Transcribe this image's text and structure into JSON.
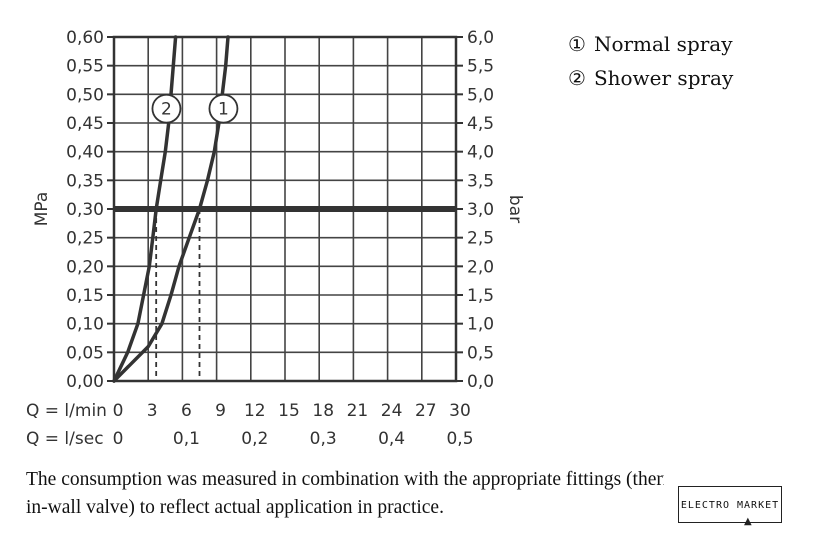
{
  "chart_data": {
    "type": "line",
    "x": {
      "label_lmin": "Q = l/min",
      "label_lsec": "Q = l/sec",
      "range": [
        0,
        30
      ],
      "ticks": [
        0,
        3,
        6,
        9,
        12,
        15,
        18,
        21,
        24,
        27,
        30
      ],
      "tick_labels_lmin": [
        "0",
        "3",
        "6",
        "9",
        "12",
        "15",
        "18",
        "21",
        "24",
        "27",
        "30"
      ],
      "ticks_lsec": [
        0,
        6,
        12,
        18,
        24,
        30
      ],
      "tick_labels_lsec": [
        "0",
        "0,1",
        "0,2",
        "0,3",
        "0,4",
        "0,5"
      ]
    },
    "y_left": {
      "label": "MPa",
      "range": [
        0,
        0.6
      ],
      "ticks": [
        0,
        0.05,
        0.1,
        0.15,
        0.2,
        0.25,
        0.3,
        0.35,
        0.4,
        0.45,
        0.5,
        0.55,
        0.6
      ],
      "tick_labels": [
        "0,00",
        "0,05",
        "0,10",
        "0,15",
        "0,20",
        "0,25",
        "0,30",
        "0,35",
        "0,40",
        "0,45",
        "0,50",
        "0,55",
        "0,60"
      ]
    },
    "y_right": {
      "label": "bar",
      "range": [
        0,
        6
      ],
      "tick_labels": [
        "0,0",
        "0,5",
        "1,0",
        "1,5",
        "2,0",
        "2,5",
        "3,0",
        "3,5",
        "4,0",
        "4,5",
        "5,0",
        "5,5",
        "6,0"
      ]
    },
    "grid": true,
    "reference_line": {
      "y": 0.3
    },
    "series": [
      {
        "marker": "1",
        "points": [
          [
            0,
            0
          ],
          [
            1.5,
            0.03
          ],
          [
            3,
            0.06
          ],
          [
            4.2,
            0.1
          ],
          [
            5,
            0.15
          ],
          [
            5.7,
            0.2
          ],
          [
            6.6,
            0.25
          ],
          [
            7.5,
            0.3
          ],
          [
            8.2,
            0.35
          ],
          [
            8.8,
            0.4
          ],
          [
            9.2,
            0.45
          ],
          [
            9.5,
            0.5
          ],
          [
            9.8,
            0.55
          ],
          [
            10,
            0.6
          ]
        ],
        "at_reference": 7.5,
        "label_at": [
          9.6,
          0.475
        ]
      },
      {
        "marker": "2",
        "points": [
          [
            0,
            0
          ],
          [
            1.2,
            0.05
          ],
          [
            2.1,
            0.1
          ],
          [
            2.6,
            0.15
          ],
          [
            3.1,
            0.2
          ],
          [
            3.4,
            0.25
          ],
          [
            3.7,
            0.3
          ],
          [
            4.1,
            0.35
          ],
          [
            4.5,
            0.4
          ],
          [
            4.8,
            0.45
          ],
          [
            5,
            0.5
          ],
          [
            5.2,
            0.55
          ],
          [
            5.4,
            0.6
          ]
        ],
        "at_reference": 3.7,
        "label_at": [
          4.6,
          0.475
        ]
      }
    ]
  },
  "legend": [
    {
      "marker": "①",
      "label": "Normal spray"
    },
    {
      "marker": "②",
      "label": "Shower spray"
    }
  ],
  "caption": {
    "line1": "The consumption was measured in combination with the appropriate fittings (thermostat/mixer/",
    "line2": "in-wall valve) to reflect actual application in practice."
  },
  "watermark": {
    "text": "ELECTRO MARKET"
  }
}
